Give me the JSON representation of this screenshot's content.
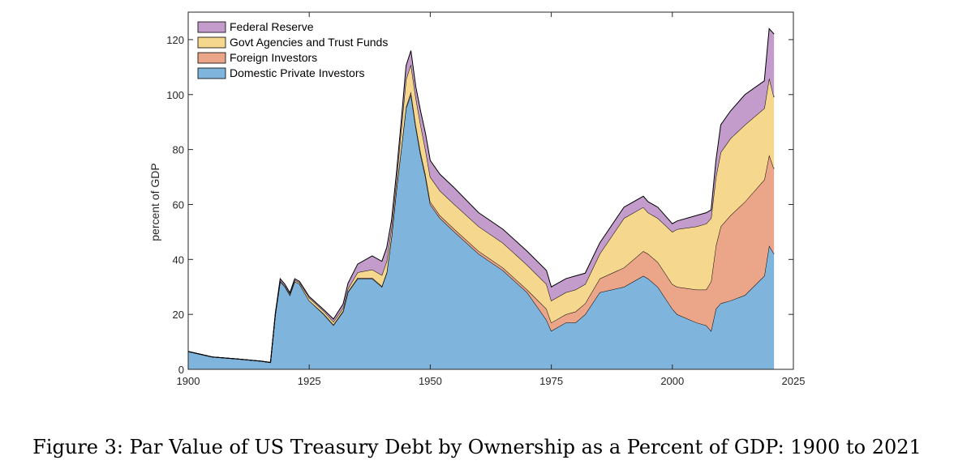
{
  "caption": "Figure 3: Par Value of US Treasury Debt by Ownership as a Percent of GDP: 1900 to 2021",
  "chart_data": {
    "type": "area",
    "stacked": true,
    "title": "",
    "xlabel": "",
    "ylabel": "percent of GDP",
    "xlim": [
      1900,
      2025
    ],
    "ylim": [
      0,
      130
    ],
    "xticks": [
      1900,
      1925,
      1950,
      1975,
      2000,
      2025
    ],
    "yticks": [
      0,
      20,
      40,
      60,
      80,
      100,
      120
    ],
    "grid": false,
    "legend_position": "top-left",
    "x": [
      1900,
      1905,
      1910,
      1915,
      1917,
      1918,
      1919,
      1920,
      1921,
      1922,
      1923,
      1925,
      1928,
      1930,
      1932,
      1933,
      1935,
      1938,
      1940,
      1941,
      1942,
      1943,
      1944,
      1945,
      1946,
      1947,
      1948,
      1949,
      1950,
      1952,
      1955,
      1960,
      1965,
      1970,
      1974,
      1975,
      1978,
      1980,
      1982,
      1985,
      1990,
      1994,
      1995,
      1997,
      2000,
      2001,
      2005,
      2007,
      2008,
      2009,
      2010,
      2012,
      2015,
      2019,
      2020,
      2021
    ],
    "series": [
      {
        "name": "Domestic Private Investors",
        "color": "#7fb5dd",
        "values": [
          6.5,
          4.5,
          3.8,
          3.0,
          2.5,
          20,
          32,
          30,
          27,
          32,
          31,
          25,
          20,
          16,
          21,
          28,
          33,
          33,
          30,
          35,
          48,
          65,
          80,
          95,
          100,
          88,
          78,
          70,
          60,
          55,
          50,
          42,
          36,
          28,
          18,
          14,
          17,
          17,
          20,
          28,
          30,
          34,
          33,
          30,
          22,
          20,
          17,
          16,
          14,
          22,
          24,
          25,
          27,
          34,
          45,
          42
        ]
      },
      {
        "name": "Foreign Investors",
        "color": "#eba589",
        "values": [
          0,
          0,
          0,
          0,
          0,
          0,
          0,
          0,
          0,
          0,
          0,
          0,
          0.2,
          0.3,
          0.3,
          0.3,
          0.3,
          0.3,
          0.3,
          0.3,
          0.3,
          0.3,
          0.3,
          0.5,
          1,
          1,
          1,
          1,
          1,
          1,
          1,
          1,
          1,
          1,
          4,
          3,
          3,
          4,
          4,
          5,
          7,
          9,
          9,
          9,
          9,
          10,
          12,
          13,
          18,
          23,
          28,
          31,
          34,
          35,
          33,
          31
        ]
      },
      {
        "name": "Govt Agencies and Trust Funds",
        "color": "#f5d88e",
        "values": [
          0,
          0,
          0,
          0,
          0,
          0,
          0.3,
          0.3,
          0.5,
          0.5,
          0.5,
          1,
          1,
          1,
          1,
          1,
          2,
          3,
          4,
          4,
          3,
          3,
          7,
          10,
          10,
          10,
          10,
          9,
          9,
          9,
          9,
          9,
          9,
          9,
          9,
          8,
          8,
          8,
          7,
          9,
          18,
          16,
          15,
          16,
          19,
          21,
          23,
          24,
          23,
          25,
          27,
          28,
          28,
          26,
          28,
          26
        ]
      },
      {
        "name": "Federal Reserve",
        "color": "#c39ccc",
        "values": [
          0,
          0,
          0,
          0,
          0,
          0.5,
          0.7,
          0.6,
          0.4,
          0.5,
          0.5,
          0.5,
          0.5,
          1,
          1.5,
          2,
          3,
          5,
          5,
          5,
          3,
          3,
          3,
          5,
          5,
          4,
          5,
          6,
          6,
          6,
          6,
          5,
          5,
          5,
          5,
          5,
          5,
          5,
          4,
          4,
          4,
          4,
          4,
          4,
          3,
          3,
          4,
          4,
          3,
          6,
          10,
          10,
          11,
          10,
          18,
          23
        ]
      }
    ]
  }
}
